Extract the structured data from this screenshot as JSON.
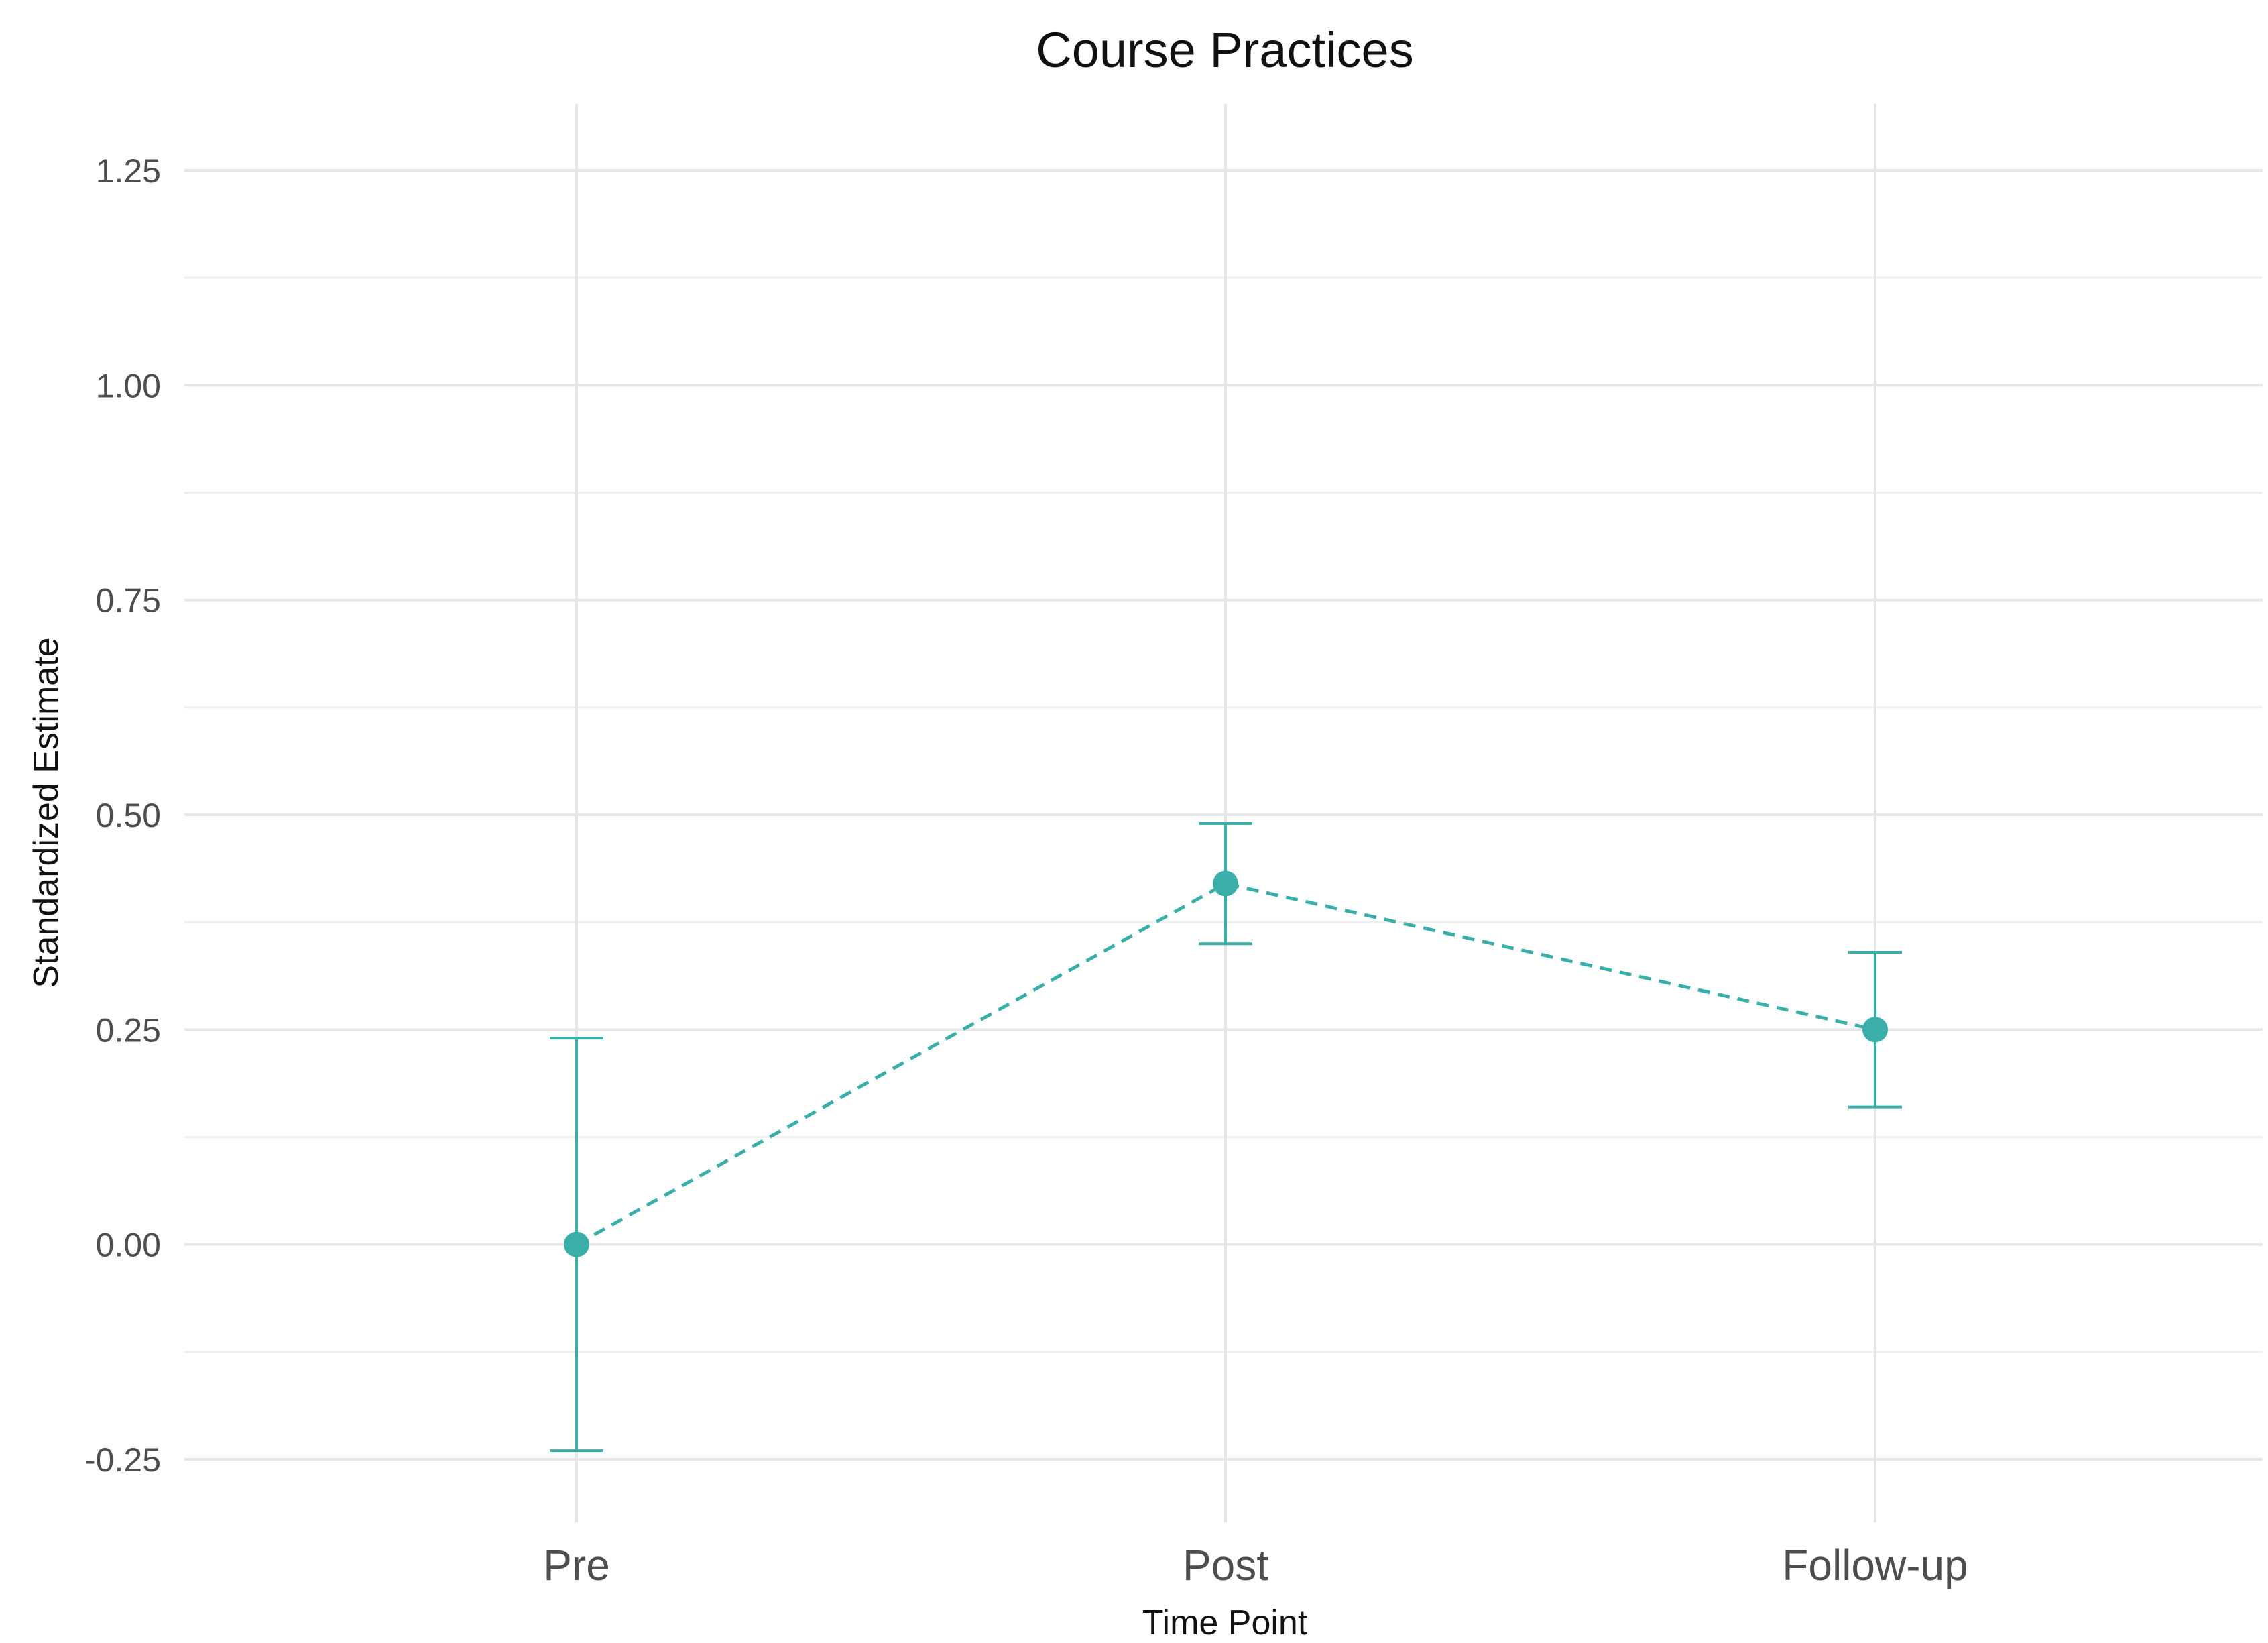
{
  "chart_data": {
    "type": "line",
    "title": "Course Practices",
    "xlabel": "Time Point",
    "ylabel": "Standardized Estimate",
    "categories": [
      "Pre",
      "Post",
      "Follow-up"
    ],
    "series": [
      {
        "values": [
          0.0,
          0.42,
          0.25
        ],
        "lower": [
          -0.24,
          0.35,
          0.16
        ],
        "upper": [
          0.24,
          0.49,
          0.34
        ],
        "color": "#3aafa9",
        "line_style": "dashed"
      }
    ],
    "ylim": [
      -0.3,
      1.32
    ],
    "yticks": [
      -0.25,
      0.0,
      0.25,
      0.5,
      0.75,
      1.0,
      1.25
    ],
    "ytick_labels": [
      "-0.25",
      "0.00",
      "0.25",
      "0.50",
      "0.75",
      "1.00",
      "1.25"
    ],
    "grid": true
  }
}
